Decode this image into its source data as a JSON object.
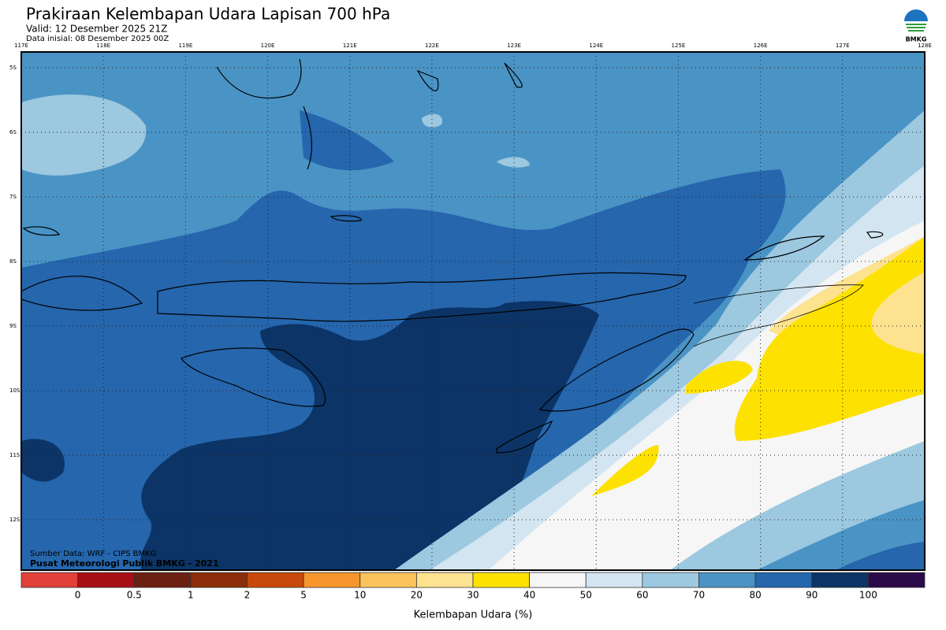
{
  "header": {
    "title": "Prakiraan Kelembapan Udara Lapisan 700 hPa",
    "valid": "Valid: 12 Desember 2025 21Z",
    "initial": "Data inisial: 08 Desember 2025 00Z",
    "logo_text": "BMKG"
  },
  "map": {
    "longitude_labels": [
      "117E",
      "118E",
      "119E",
      "120E",
      "121E",
      "122E",
      "123E",
      "124E",
      "125E",
      "126E",
      "127E",
      "128E"
    ],
    "latitude_labels": [
      "5S",
      "6S",
      "7S",
      "8S",
      "9S",
      "10S",
      "11S",
      "12S"
    ],
    "credits": [
      "Sumber Data: WRF - CIPS BMKG",
      "Pusat Meteorologi Publik BMKG - 2021"
    ]
  },
  "colorbar": {
    "colors": [
      "#e2403a",
      "#a50f15",
      "#6b2212",
      "#8c2d0a",
      "#c9490c",
      "#f7962c",
      "#fcc25c",
      "#fde28f",
      "#fde100",
      "#f6f6f6",
      "#d3e5f0",
      "#9cc8e0",
      "#4a93c5",
      "#2566ad",
      "#0c3466",
      "#2b0a4a"
    ],
    "labels": [
      "0",
      "0.5",
      "1",
      "2",
      "5",
      "10",
      "20",
      "30",
      "40",
      "50",
      "60",
      "70",
      "80",
      "90",
      "100"
    ],
    "title": "Kelembapan Udara (%)"
  }
}
